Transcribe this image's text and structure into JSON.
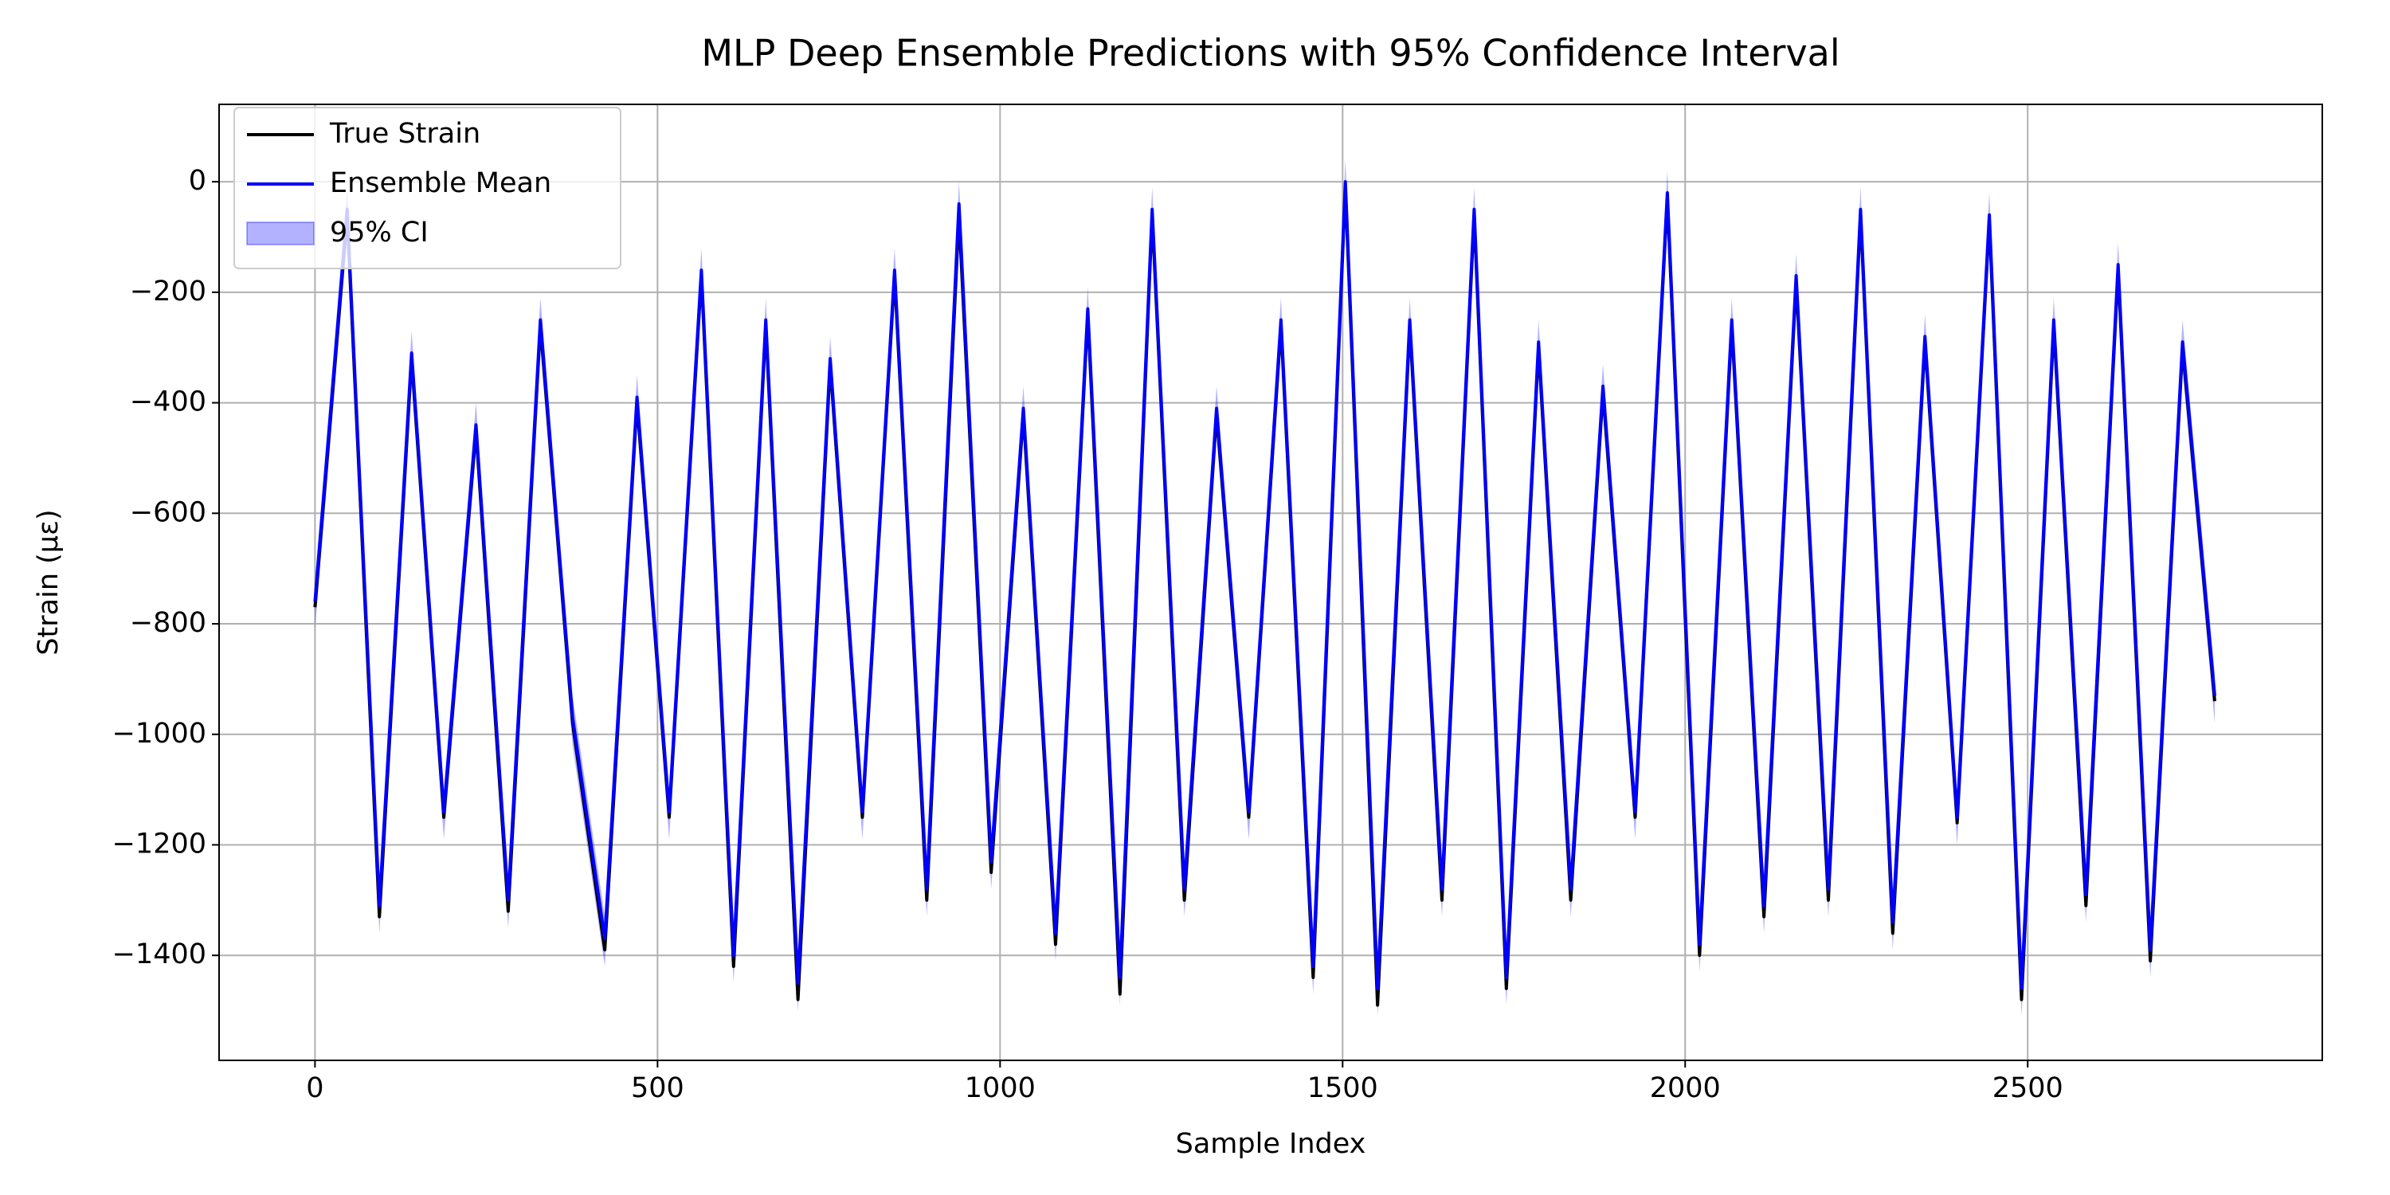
{
  "chart_data": {
    "type": "line",
    "title": "MLP Deep Ensemble Predictions with 95% Confidence Interval",
    "x_label": "Sample Index",
    "y_label": "Strain (με)",
    "x": [
      0,
      47,
      94,
      141,
      188,
      235,
      282,
      329,
      376,
      423,
      470,
      517,
      564,
      611,
      658,
      705,
      752,
      799,
      846,
      893,
      940,
      987,
      1034,
      1081,
      1128,
      1175,
      1222,
      1269,
      1316,
      1363,
      1410,
      1457,
      1504,
      1551,
      1598,
      1645,
      1692,
      1739,
      1786,
      1833,
      1880,
      1927,
      1974,
      2021,
      2068,
      2115,
      2162,
      2209,
      2256,
      2303,
      2350,
      2397,
      2444,
      2491,
      2538,
      2585,
      2632,
      2679,
      2726,
      2773
    ],
    "series": [
      {
        "name": "True Strain",
        "color": "#000000",
        "values": [
          -770,
          -60,
          -1330,
          -320,
          -1150,
          -450,
          -1320,
          -260,
          -980,
          -1390,
          -400,
          -1150,
          -170,
          -1420,
          -260,
          -1480,
          -330,
          -1150,
          -170,
          -1300,
          -60,
          -1250,
          -420,
          -1380,
          -240,
          -1470,
          -60,
          -1300,
          -420,
          -1150,
          -260,
          -1440,
          -10,
          -1490,
          -260,
          -1300,
          -60,
          -1460,
          -300,
          -1300,
          -380,
          -1150,
          -30,
          -1400,
          -260,
          -1330,
          -180,
          -1300,
          -60,
          -1360,
          -290,
          -1160,
          -70,
          -1480,
          -260,
          -1310,
          -160,
          -1410,
          -300,
          -940
        ]
      },
      {
        "name": "Ensemble Mean",
        "color": "#0000ff",
        "values": [
          -760,
          -50,
          -1310,
          -310,
          -1140,
          -440,
          -1300,
          -250,
          -970,
          -1370,
          -390,
          -1140,
          -160,
          -1400,
          -250,
          -1450,
          -320,
          -1140,
          -160,
          -1280,
          -40,
          -1230,
          -410,
          -1360,
          -230,
          -1440,
          -50,
          -1280,
          -410,
          -1140,
          -250,
          -1420,
          0,
          -1460,
          -250,
          -1280,
          -50,
          -1440,
          -290,
          -1280,
          -370,
          -1140,
          -20,
          -1380,
          -250,
          -1310,
          -170,
          -1280,
          -50,
          -1340,
          -280,
          -1150,
          -60,
          -1460,
          -250,
          -1290,
          -150,
          -1390,
          -290,
          -930
        ]
      },
      {
        "name": "95% CI",
        "color": "#0000ff",
        "upper": [
          -720,
          -10,
          -1270,
          -270,
          -1100,
          -400,
          -1260,
          -210,
          -930,
          -1330,
          -350,
          -1100,
          -120,
          -1360,
          -210,
          -1410,
          -280,
          -1100,
          -120,
          -1240,
          0,
          -1190,
          -370,
          -1320,
          -190,
          -1400,
          -10,
          -1240,
          -370,
          -1100,
          -210,
          -1380,
          40,
          -1420,
          -210,
          -1240,
          -10,
          -1400,
          -250,
          -1240,
          -330,
          -1100,
          20,
          -1340,
          -210,
          -1270,
          -130,
          -1240,
          -10,
          -1300,
          -240,
          -1110,
          -20,
          -1420,
          -210,
          -1250,
          -110,
          -1350,
          -250,
          -890
        ],
        "lower": [
          -810,
          -100,
          -1360,
          -360,
          -1190,
          -490,
          -1350,
          -300,
          -1020,
          -1420,
          -440,
          -1190,
          -210,
          -1450,
          -300,
          -1500,
          -370,
          -1190,
          -210,
          -1330,
          -90,
          -1280,
          -460,
          -1410,
          -280,
          -1490,
          -100,
          -1330,
          -460,
          -1190,
          -300,
          -1470,
          -50,
          -1510,
          -300,
          -1330,
          -100,
          -1490,
          -340,
          -1330,
          -420,
          -1190,
          -70,
          -1430,
          -300,
          -1360,
          -220,
          -1330,
          -100,
          -1390,
          -330,
          -1200,
          -110,
          -1510,
          -300,
          -1340,
          -200,
          -1440,
          -340,
          -980
        ]
      }
    ],
    "xlim": [
      -140,
      2930
    ],
    "ylim": [
      -1590,
      140
    ],
    "xticks": [
      0,
      500,
      1000,
      1500,
      2000,
      2500
    ],
    "yticks": [
      {
        "value": -1400,
        "label": "−1400"
      },
      {
        "value": -1200,
        "label": "−1200"
      },
      {
        "value": -1000,
        "label": "−1000"
      },
      {
        "value": -800,
        "label": "−800"
      },
      {
        "value": -600,
        "label": "−600"
      },
      {
        "value": -400,
        "label": "−400"
      },
      {
        "value": -200,
        "label": "−200"
      },
      0
    ],
    "grid": true,
    "legend": "upper left"
  }
}
